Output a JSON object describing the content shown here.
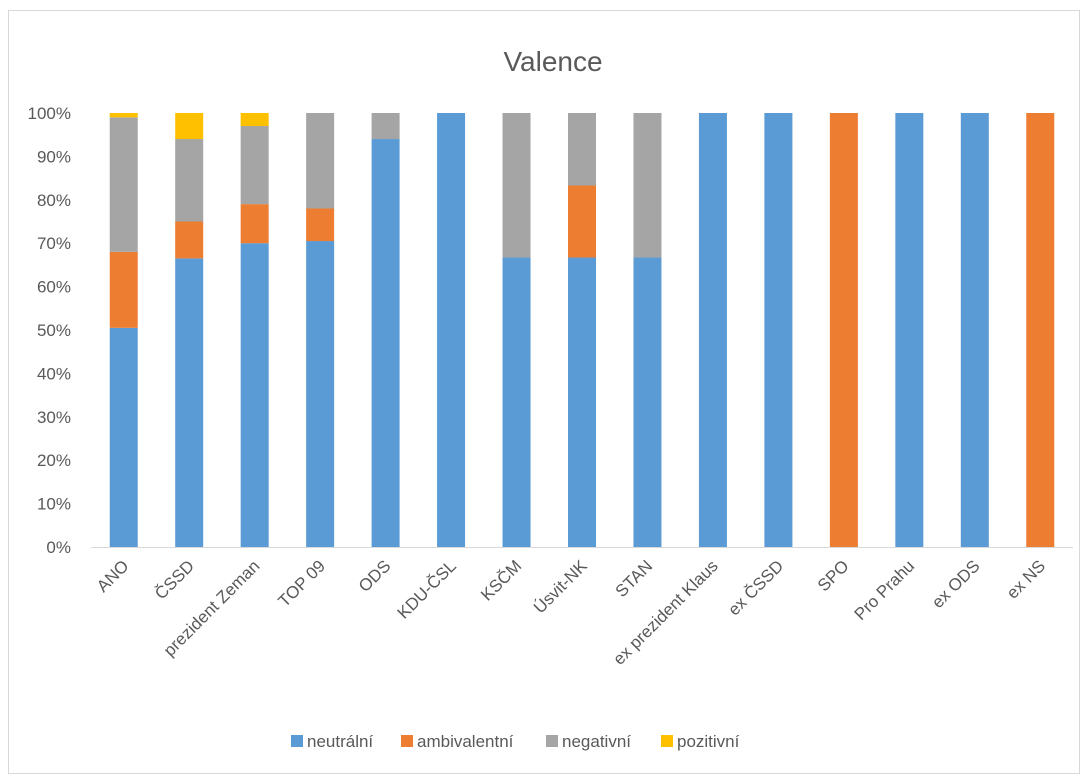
{
  "chart_data": {
    "type": "bar",
    "stacked": "percent",
    "title": "Valence",
    "categories": [
      "ANO",
      "ČSSD",
      "prezident Zeman",
      "TOP 09",
      "ODS",
      "KDU-ČSL",
      "KSČM",
      "Úsvit-NK",
      "STAN",
      "ex prezident Klaus",
      "ex ČSSD",
      "SPO",
      "Pro Prahu",
      "ex ODS",
      "ex NS"
    ],
    "series": [
      {
        "name": "neutrální",
        "color": "#5b9bd5",
        "values": [
          50.5,
          66.5,
          70,
          70.5,
          94,
          100,
          66.7,
          66.7,
          66.7,
          100,
          100,
          0,
          100,
          100,
          0
        ]
      },
      {
        "name": "ambivalentní",
        "color": "#ed7d31",
        "values": [
          17.5,
          8.5,
          9,
          7.5,
          0,
          0,
          0,
          16.6,
          0,
          0,
          0,
          100,
          0,
          0,
          100
        ]
      },
      {
        "name": "negativní",
        "color": "#a5a5a5",
        "values": [
          31,
          19,
          18,
          22,
          6,
          0,
          33.3,
          16.7,
          33.3,
          0,
          0,
          0,
          0,
          0,
          0
        ]
      },
      {
        "name": "pozitivní",
        "color": "#ffc000",
        "values": [
          1,
          6,
          3,
          0,
          0,
          0,
          0,
          0,
          0,
          0,
          0,
          0,
          0,
          0,
          0
        ]
      }
    ],
    "y_ticks": [
      "0%",
      "10%",
      "20%",
      "30%",
      "40%",
      "50%",
      "60%",
      "70%",
      "80%",
      "90%",
      "100%"
    ],
    "ylim": [
      0,
      100
    ],
    "grid": false,
    "legend_position": "bottom"
  }
}
